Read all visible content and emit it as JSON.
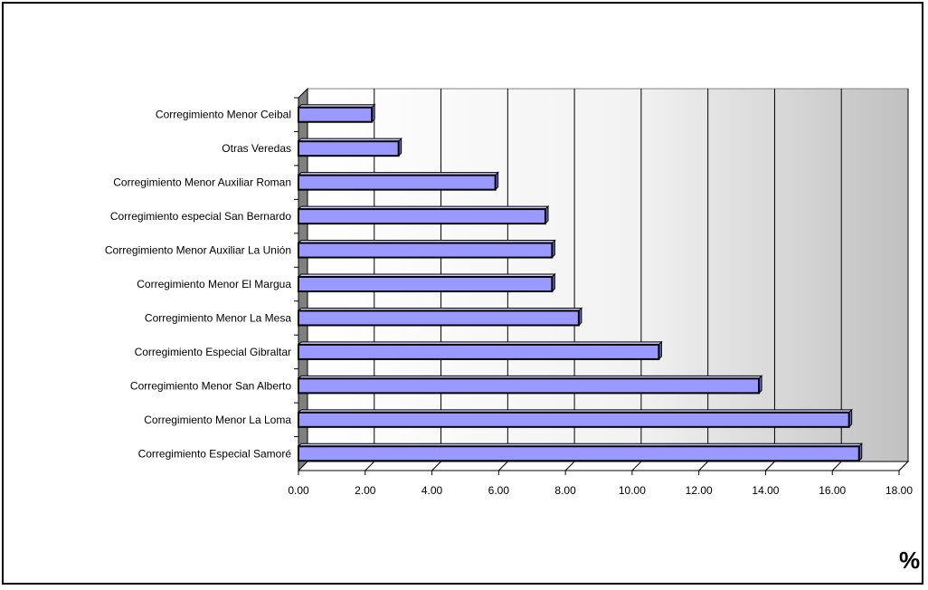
{
  "chart_data": {
    "type": "bar",
    "orientation": "horizontal",
    "categories": [
      "Corregimiento Menor Ceibal",
      "Otras Veredas",
      "Corregimiento Menor Auxiliar Roman",
      "Corregimiento especial San Bernardo",
      "Corregimiento Menor Auxiliar La Unión",
      "Corregimiento Menor El Margua",
      "Corregimiento Menor La Mesa",
      "Corregimiento Especial Gibraltar",
      "Corregimiento Menor San Alberto",
      "Corregimiento Menor La Loma",
      "Corregimiento Especial Samoré"
    ],
    "values": [
      2.2,
      3.0,
      5.9,
      7.4,
      7.6,
      7.6,
      8.4,
      10.8,
      13.8,
      16.5,
      16.8
    ],
    "xlim": [
      0,
      18
    ],
    "xticks": [
      "0.00",
      "2.00",
      "4.00",
      "6.00",
      "8.00",
      "10.00",
      "12.00",
      "14.00",
      "16.00",
      "18.00"
    ],
    "xlabel": "%",
    "title": "",
    "ylabel": "",
    "grid": "vertical",
    "style": "3d",
    "colors": {
      "bar_front": "#9999ff",
      "bar_top": "#ccccff",
      "bar_side": "#6666cc",
      "bar_outline": "#000000",
      "wall_left": "#ffffff",
      "wall_right": "#c0c0c0",
      "side_wall": "#808080"
    }
  }
}
